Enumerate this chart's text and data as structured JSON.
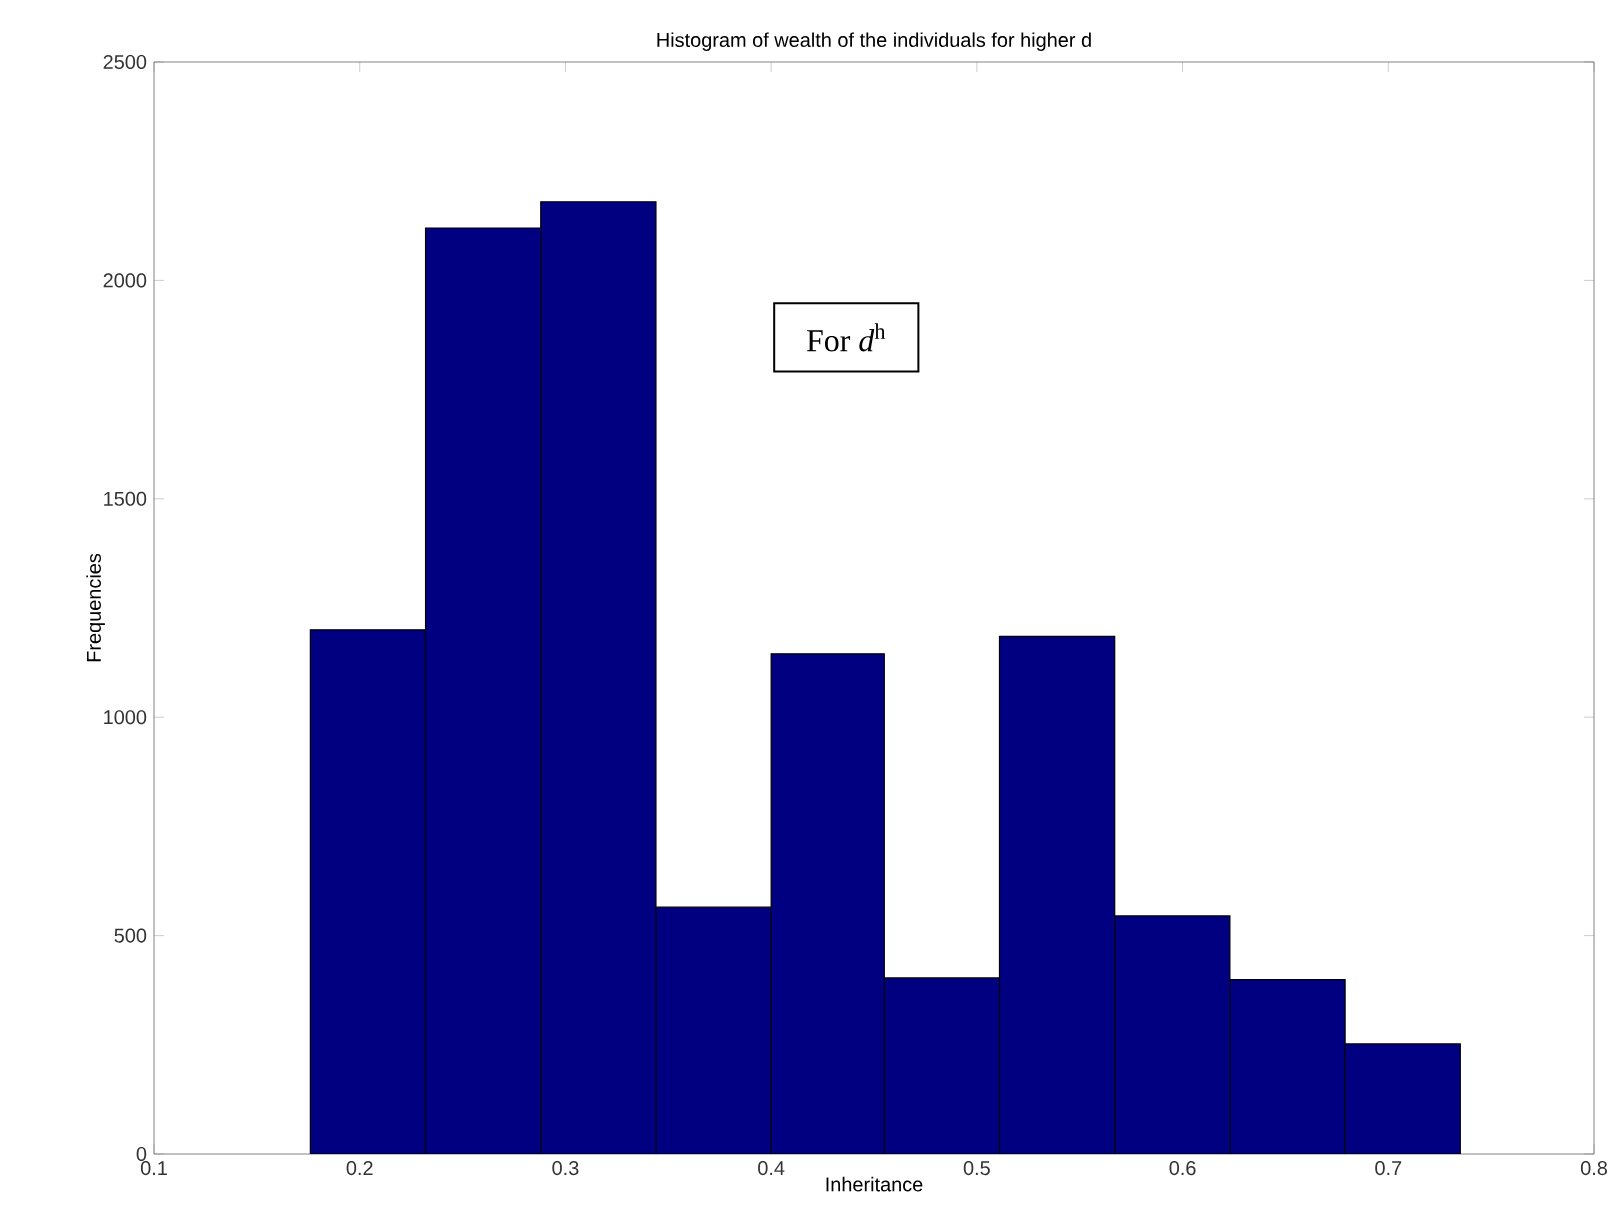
{
  "chart_data": {
    "type": "histogram",
    "title": "Histogram of wealth of the individuals for higher d",
    "xlabel": "Inheritance",
    "ylabel": "Frequencies",
    "bins": [
      0.176,
      0.232,
      0.288,
      0.344,
      0.4,
      0.455,
      0.511,
      0.567,
      0.623,
      0.679,
      0.735
    ],
    "values": [
      1200,
      2120,
      2180,
      565,
      1145,
      403,
      1185,
      545,
      399,
      252
    ],
    "color": "#000080",
    "xlim": [
      0.1,
      0.8
    ],
    "xticks": [
      0.1,
      0.2,
      0.3,
      0.4,
      0.5,
      0.6,
      0.7,
      0.8
    ],
    "ylim": [
      0,
      2500
    ],
    "yticks": [
      0,
      500,
      1000,
      1500,
      2000,
      2500
    ],
    "grid": false,
    "annotations": [
      "For *d*$^{h}$"
    ]
  }
}
